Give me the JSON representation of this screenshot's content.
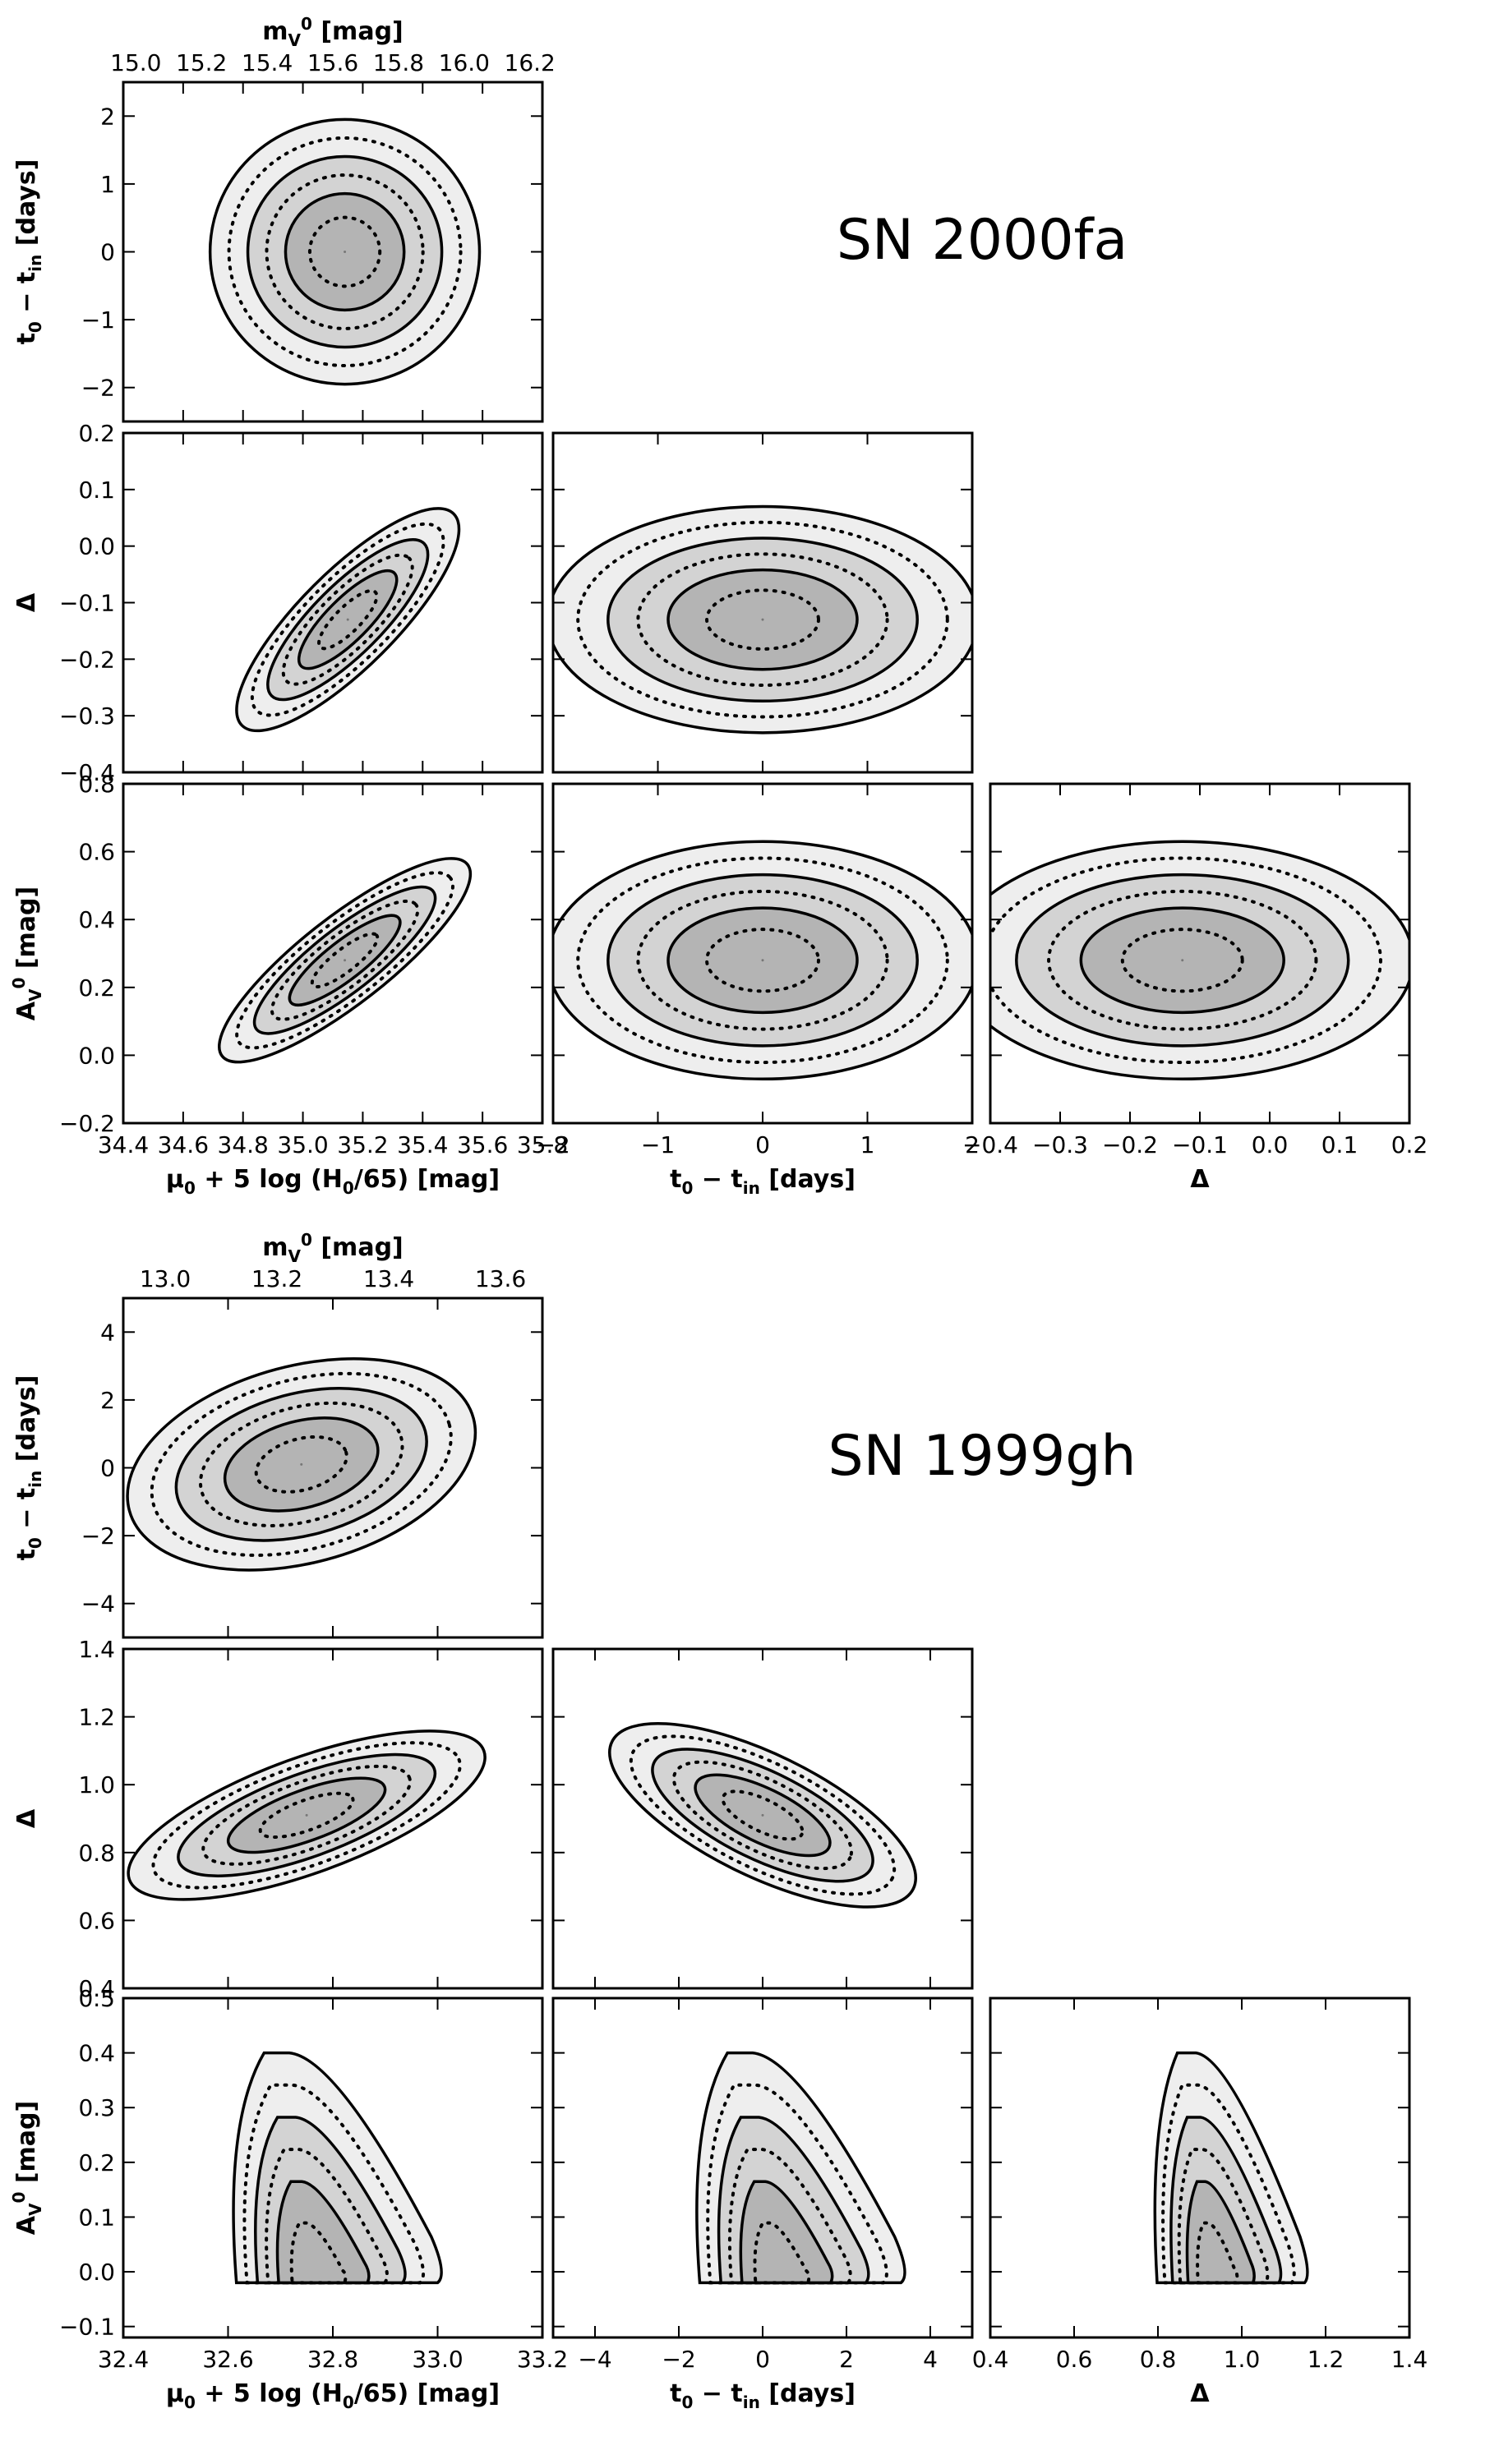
{
  "chart_data": [
    {
      "title": "SN 2000fa",
      "type": "contour",
      "top_axis": {
        "label": "m_V^0 [mag]",
        "ticks": [
          "15.0",
          "15.2",
          "15.4",
          "15.6",
          "15.8",
          "16.0",
          "16.2"
        ]
      },
      "columns": [
        {
          "label": "μ_0 + 5 log (H_0/65) [mag]",
          "range": [
            34.4,
            35.8
          ],
          "ticks": [
            "34.4",
            "34.6",
            "34.8",
            "35.0",
            "35.2",
            "35.4",
            "35.6",
            "35.8"
          ]
        },
        {
          "label": "t_0 − t_in [days]",
          "range": [
            -2,
            2
          ],
          "ticks": [
            "−2",
            "−1",
            "0",
            "1",
            "2"
          ]
        },
        {
          "label": "Δ",
          "range": [
            -0.4,
            0.2
          ],
          "ticks": [
            "−0.4",
            "−0.3",
            "−0.2",
            "−0.1",
            "0.0",
            "0.1",
            "0.2"
          ]
        }
      ],
      "rows": [
        {
          "label": "t_0 − t_in [days]",
          "range": [
            -2.5,
            2.5
          ],
          "ticks": [
            "−2",
            "−1",
            "0",
            "1",
            "2"
          ]
        },
        {
          "label": "Δ",
          "range": [
            -0.4,
            0.2
          ],
          "ticks": [
            "−0.4",
            "−0.3",
            "−0.2",
            "−0.1",
            "0.0",
            "0.1",
            "0.2"
          ]
        },
        {
          "label": "A_V^0 [mag]",
          "range": [
            -0.2,
            0.8
          ],
          "ticks": [
            "−0.2",
            "0.0",
            "0.2",
            "0.4",
            "0.6",
            "0.8"
          ]
        }
      ],
      "panels": [
        {
          "row": 0,
          "col": 0,
          "center": [
            35.14,
            0.0
          ],
          "radii": [
            0.45,
            1.95
          ],
          "angle": 0,
          "top_cut": null
        },
        {
          "row": 1,
          "col": 0,
          "center": [
            35.15,
            -0.13
          ],
          "radii": [
            0.5,
            0.085
          ],
          "angle": -45,
          "top_cut": null
        },
        {
          "row": 1,
          "col": 1,
          "center": [
            0.0,
            -0.13
          ],
          "radii": [
            2.05,
            0.2
          ],
          "angle": 0,
          "top_cut": null
        },
        {
          "row": 2,
          "col": 0,
          "center": [
            35.14,
            0.28
          ],
          "radii": [
            0.52,
            0.045
          ],
          "angle": -38,
          "top_cut": null
        },
        {
          "row": 2,
          "col": 1,
          "center": [
            0.0,
            0.28
          ],
          "radii": [
            2.05,
            0.35
          ],
          "angle": 0,
          "top_cut": null
        },
        {
          "row": 2,
          "col": 2,
          "center": [
            -0.125,
            0.28
          ],
          "radii": [
            0.33,
            0.35
          ],
          "angle": 0,
          "top_cut": null
        }
      ]
    },
    {
      "title": "SN 1999gh",
      "type": "contour",
      "top_axis": {
        "label": "m_V^0 [mag]",
        "ticks": [
          "13.0",
          "13.2",
          "13.4",
          "13.6"
        ]
      },
      "columns": [
        {
          "label": "μ_0 + 5 log (H_0/65) [mag]",
          "range": [
            32.4,
            33.2
          ],
          "ticks": [
            "32.4",
            "32.6",
            "32.8",
            "33.0",
            "33.2"
          ]
        },
        {
          "label": "t_0 − t_in [days]",
          "range": [
            -5,
            5
          ],
          "ticks": [
            "−4",
            "−2",
            "0",
            "2",
            "4"
          ]
        },
        {
          "label": "Δ",
          "range": [
            0.4,
            1.4
          ],
          "ticks": [
            "0.4",
            "0.6",
            "0.8",
            "1.0",
            "1.2",
            "1.4"
          ]
        }
      ],
      "rows": [
        {
          "label": "t_0 − t_in [days]",
          "range": [
            -5,
            5
          ],
          "ticks": [
            "−4",
            "−2",
            "0",
            "2",
            "4"
          ]
        },
        {
          "label": "Δ",
          "range": [
            0.4,
            1.4
          ],
          "ticks": [
            "0.4",
            "0.6",
            "0.8",
            "1.0",
            "1.2",
            "1.4"
          ]
        },
        {
          "label": "A_V^0 [mag]",
          "range": [
            -0.12,
            0.5
          ],
          "ticks": [
            "−0.1",
            "0.0",
            "0.1",
            "0.2",
            "0.3",
            "0.4",
            "0.5"
          ]
        }
      ],
      "panels": [
        {
          "row": 0,
          "col": 0,
          "center": [
            32.74,
            0.1
          ],
          "radii": [
            0.34,
            2.9
          ],
          "angle": -15,
          "top_cut": null
        },
        {
          "row": 1,
          "col": 0,
          "center": [
            32.75,
            0.91
          ],
          "radii": [
            0.36,
            0.17
          ],
          "angle": -20,
          "top_cut": null
        },
        {
          "row": 1,
          "col": 1,
          "center": [
            0.0,
            0.91
          ],
          "radii": [
            4.0,
            0.18
          ],
          "angle": 26,
          "top_cut": null
        },
        {
          "row": 2,
          "col": 0,
          "center": [
            32.76,
            0.0
          ],
          "radii": [
            0.24,
            0.0
          ],
          "angle": 0,
          "top_cut": 0.4,
          "peak": [
            32.76,
            0.03
          ]
        },
        {
          "row": 2,
          "col": 1,
          "center": [
            0.0,
            0.0
          ],
          "radii": [
            3.0,
            0.0
          ],
          "angle": 0,
          "top_cut": 0.4,
          "peak": [
            0.3,
            0.03
          ]
        },
        {
          "row": 2,
          "col": 2,
          "center": [
            0.93,
            0.0
          ],
          "radii": [
            0.22,
            0.0
          ],
          "angle": 0,
          "top_cut": 0.4,
          "peak": [
            0.93,
            0.03
          ]
        }
      ]
    }
  ]
}
